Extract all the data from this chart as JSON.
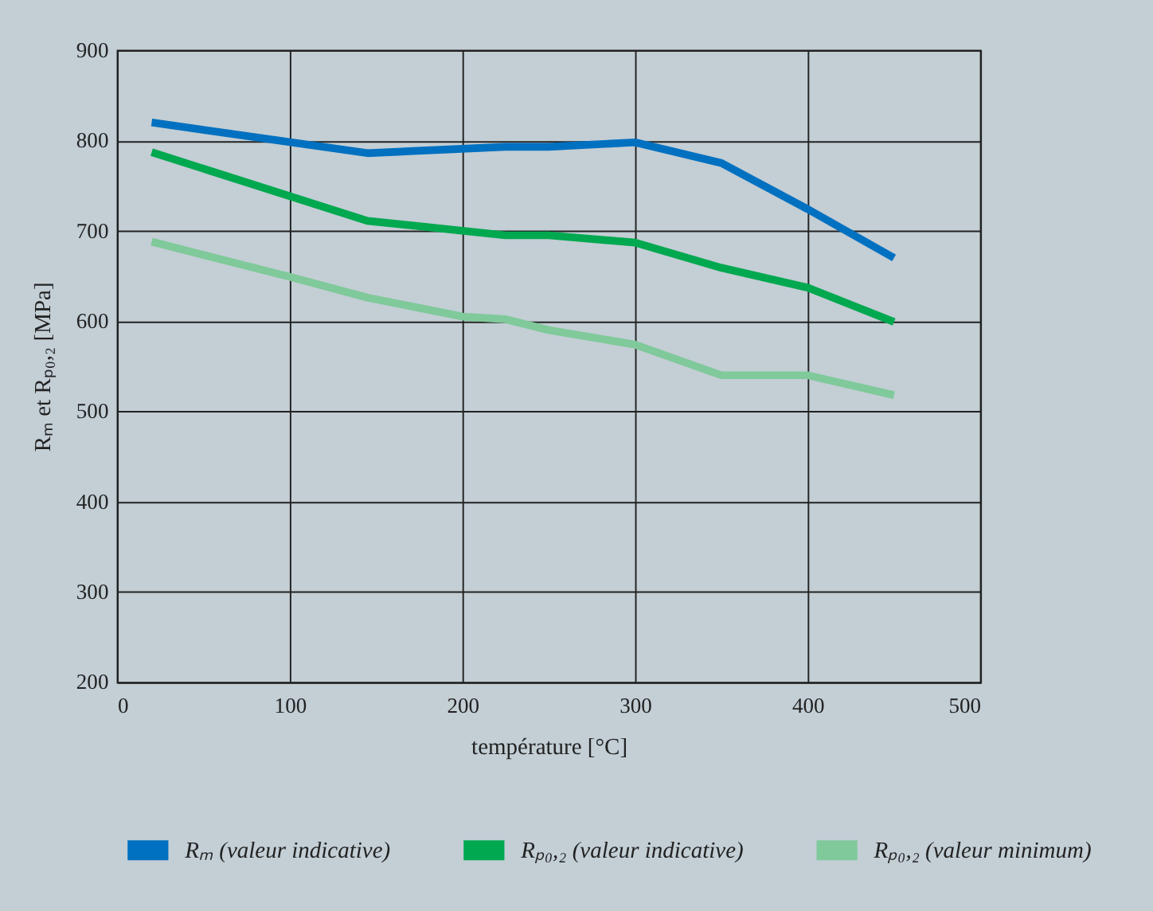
{
  "chart_data": {
    "type": "line",
    "xlabel": "température [°C]",
    "ylabel": "Rₘ et Rₚ₀,₂ [MPa]",
    "xlim": [
      0,
      500
    ],
    "xticks": [
      0,
      100,
      200,
      300,
      400,
      500
    ],
    "ylim": [
      200,
      900
    ],
    "yticks": [
      200,
      300,
      400,
      500,
      600,
      700,
      800,
      900
    ],
    "grid": true,
    "legend": "bottom",
    "marker": "none",
    "line_style": "solid",
    "series": [
      {
        "name": "Rₘ (valeur indicative)",
        "color": "#0070c0",
        "x": [
          20,
          145,
          225,
          250,
          300,
          350,
          400,
          450
        ],
        "values": [
          820,
          786,
          793,
          793,
          798,
          775,
          724,
          670
        ]
      },
      {
        "name": "Rₚ₀,₂ (valeur indicative)",
        "color": "#00a84f",
        "x": [
          20,
          145,
          225,
          250,
          300,
          350,
          400,
          450
        ],
        "values": [
          787,
          711,
          695,
          695,
          687,
          659,
          637,
          599
        ]
      },
      {
        "name": "Rₚ₀,₂ (valeur minimum)",
        "color": "#80c99a",
        "x": [
          20,
          100,
          145,
          200,
          225,
          250,
          300,
          350,
          400,
          450
        ],
        "values": [
          688,
          649,
          626,
          605,
          602,
          590,
          574,
          540,
          540,
          518
        ]
      }
    ]
  }
}
